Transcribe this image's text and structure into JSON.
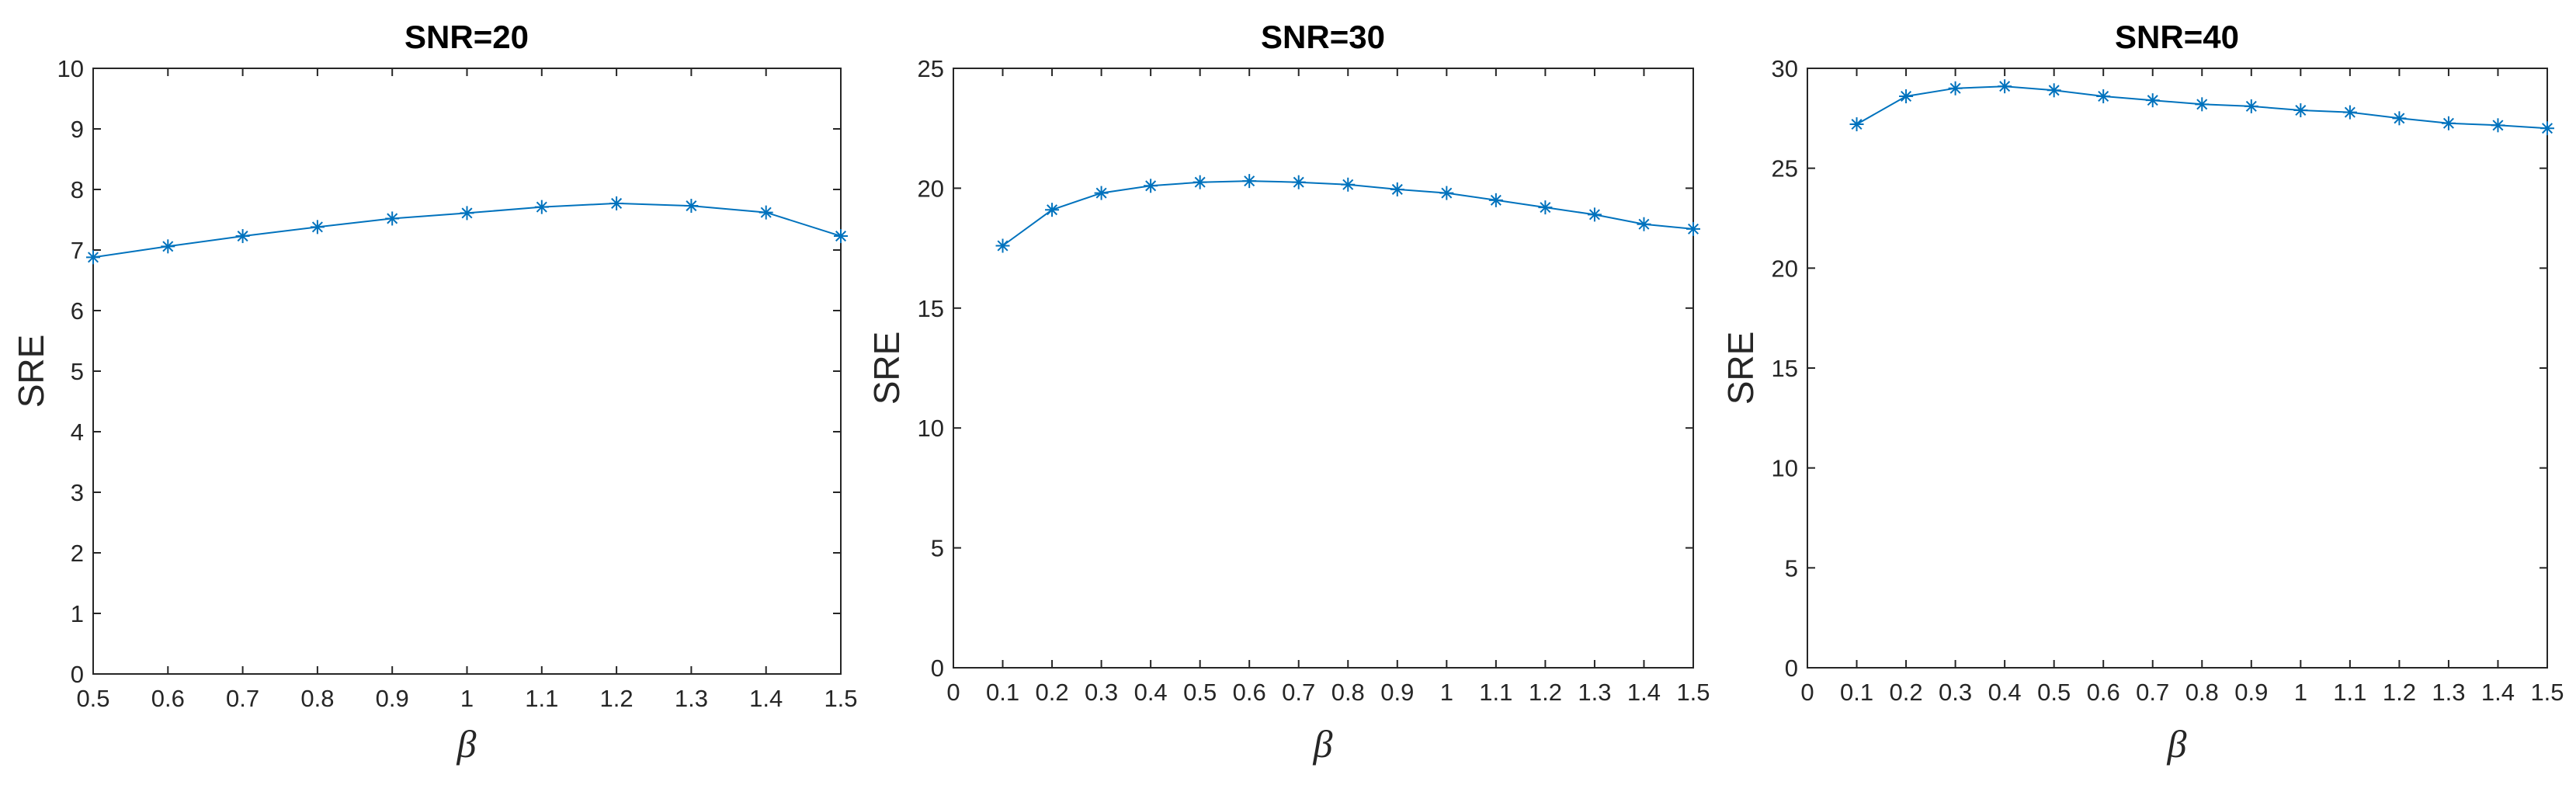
{
  "colors": {
    "series": "#0072BD",
    "axes": "#262626",
    "background": "#ffffff"
  },
  "chart_data": [
    {
      "type": "line",
      "title": "SNR=20",
      "xlabel": "β",
      "ylabel": "SRE",
      "xlim": [
        0.5,
        1.5
      ],
      "ylim": [
        0,
        10
      ],
      "xticks": [
        "0.5",
        "0.6",
        "0.7",
        "0.8",
        "0.9",
        "1",
        "1.1",
        "1.2",
        "1.3",
        "1.4",
        "1.5"
      ],
      "yticks": [
        "0",
        "1",
        "2",
        "3",
        "4",
        "5",
        "6",
        "7",
        "8",
        "9",
        "10"
      ],
      "marker": "asterisk",
      "grid": false,
      "x": [
        0.5,
        0.6,
        0.7,
        0.8,
        0.9,
        1.0,
        1.1,
        1.2,
        1.3,
        1.4,
        1.5
      ],
      "y": [
        6.88,
        7.06,
        7.23,
        7.38,
        7.52,
        7.61,
        7.71,
        7.77,
        7.73,
        7.62,
        7.23
      ]
    },
    {
      "type": "line",
      "title": "SNR=30",
      "xlabel": "β",
      "ylabel": "SRE",
      "xlim": [
        0,
        1.5
      ],
      "ylim": [
        0,
        25
      ],
      "xticks": [
        "0",
        "0.1",
        "0.2",
        "0.3",
        "0.4",
        "0.5",
        "0.6",
        "0.7",
        "0.8",
        "0.9",
        "1",
        "1.1",
        "1.2",
        "1.3",
        "1.4",
        "1.5"
      ],
      "yticks": [
        "0",
        "5",
        "10",
        "15",
        "20",
        "25"
      ],
      "marker": "asterisk",
      "grid": false,
      "x": [
        0.1,
        0.2,
        0.3,
        0.4,
        0.5,
        0.6,
        0.7,
        0.8,
        0.9,
        1.0,
        1.1,
        1.2,
        1.3,
        1.4,
        1.5
      ],
      "y": [
        17.6,
        19.1,
        19.8,
        20.1,
        20.25,
        20.3,
        20.25,
        20.15,
        19.95,
        19.8,
        19.5,
        19.2,
        18.9,
        18.5,
        18.3
      ]
    },
    {
      "type": "line",
      "title": "SNR=40",
      "xlabel": "β",
      "ylabel": "SRE",
      "xlim": [
        0,
        1.5
      ],
      "ylim": [
        0,
        30
      ],
      "xticks": [
        "0",
        "0.1",
        "0.2",
        "0.3",
        "0.4",
        "0.5",
        "0.6",
        "0.7",
        "0.8",
        "0.9",
        "1",
        "1.1",
        "1.2",
        "1.3",
        "1.4",
        "1.5"
      ],
      "yticks": [
        "0",
        "5",
        "10",
        "15",
        "20",
        "25",
        "30"
      ],
      "marker": "asterisk",
      "grid": false,
      "x": [
        0.1,
        0.2,
        0.3,
        0.4,
        0.5,
        0.6,
        0.7,
        0.8,
        0.9,
        1.0,
        1.1,
        1.2,
        1.3,
        1.4,
        1.5
      ],
      "y": [
        27.2,
        28.6,
        29.0,
        29.1,
        28.9,
        28.6,
        28.4,
        28.2,
        28.1,
        27.9,
        27.8,
        27.5,
        27.25,
        27.15,
        27.0
      ]
    }
  ]
}
